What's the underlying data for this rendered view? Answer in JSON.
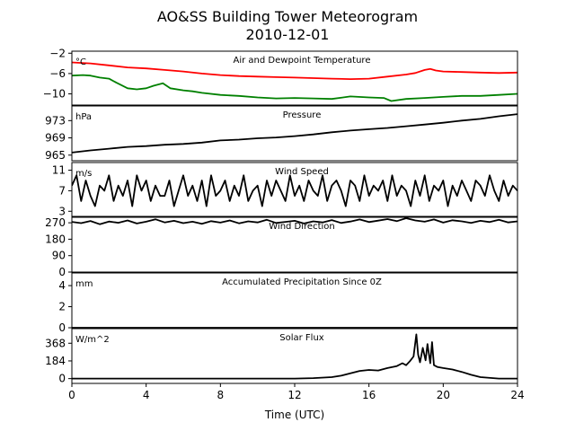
{
  "chart_data": {
    "type": "line",
    "title": "AO&SS Building Tower Meteorogram",
    "subtitle": "2010-12-01",
    "xlabel": "Time (UTC)",
    "xlim": [
      0,
      24
    ],
    "xticks": [
      "0",
      "4",
      "8",
      "12",
      "16",
      "20",
      "24"
    ],
    "panels": [
      {
        "title": "Air and Dewpoint Temperature",
        "unit": "°C",
        "ylim": [
          -12.2,
          -1.6
        ],
        "yticks": [
          {
            "v": -2,
            "t": "−2"
          },
          {
            "v": -6,
            "t": "−6"
          },
          {
            "v": -10,
            "t": "−10"
          }
        ],
        "series": [
          {
            "color": "#ff0000",
            "x": [
              0,
              1,
              2,
              3,
              4,
              5,
              6,
              7,
              8,
              9,
              10,
              11,
              12,
              13,
              14,
              15,
              16,
              17,
              18,
              18.5,
              19,
              19.3,
              19.6,
              20,
              21,
              22,
              23,
              24
            ],
            "y": [
              -3.8,
              -4.0,
              -4.4,
              -4.8,
              -5.0,
              -5.3,
              -5.6,
              -6.0,
              -6.3,
              -6.5,
              -6.6,
              -6.7,
              -6.8,
              -6.9,
              -7.0,
              -7.1,
              -7.0,
              -6.6,
              -6.2,
              -5.9,
              -5.3,
              -5.1,
              -5.4,
              -5.6,
              -5.7,
              -5.8,
              -5.9,
              -5.8
            ]
          },
          {
            "color": "#008000",
            "x": [
              0,
              0.6,
              1,
              1.5,
              2,
              2.4,
              3,
              3.5,
              4,
              4.4,
              4.9,
              5.3,
              6,
              6.5,
              7,
              8,
              9,
              10,
              11,
              12,
              13,
              14,
              15,
              16,
              16.8,
              17.2,
              18,
              19,
              20,
              21,
              22,
              23,
              24
            ],
            "y": [
              -6.4,
              -6.3,
              -6.4,
              -6.8,
              -7.0,
              -7.8,
              -8.9,
              -9.1,
              -8.9,
              -8.4,
              -7.9,
              -8.9,
              -9.3,
              -9.5,
              -9.8,
              -10.2,
              -10.4,
              -10.7,
              -10.9,
              -10.8,
              -10.9,
              -11.0,
              -10.5,
              -10.7,
              -10.8,
              -11.4,
              -11.0,
              -10.8,
              -10.6,
              -10.4,
              -10.4,
              -10.2,
              -10.0
            ]
          }
        ]
      },
      {
        "title": "Pressure",
        "unit": "hPa",
        "ylim": [
          963.7,
          976.4
        ],
        "yticks": [
          {
            "v": 973,
            "t": "973"
          },
          {
            "v": 969,
            "t": "969"
          },
          {
            "v": 965,
            "t": "965"
          }
        ],
        "series": [
          {
            "color": "#000000",
            "x": [
              0,
              1,
              2,
              3,
              4,
              5,
              6,
              7,
              8,
              9,
              10,
              11,
              12,
              13,
              14,
              15,
              16,
              17,
              18,
              19,
              20,
              21,
              22,
              23,
              24
            ],
            "y": [
              965.6,
              966.1,
              966.5,
              966.9,
              967.1,
              967.4,
              967.6,
              967.9,
              968.4,
              968.6,
              968.9,
              969.1,
              969.4,
              969.8,
              970.3,
              970.7,
              971.0,
              971.3,
              971.7,
              972.1,
              972.5,
              973.0,
              973.4,
              974.0,
              974.5
            ]
          }
        ]
      },
      {
        "title": "Wind Speed",
        "unit": "m/s",
        "ylim": [
          2.0,
          12.5
        ],
        "yticks": [
          {
            "v": 11,
            "t": "11"
          },
          {
            "v": 7,
            "t": "7"
          },
          {
            "v": 3,
            "t": "3"
          }
        ],
        "series": [
          {
            "color": "#000000",
            "x": [
              0,
              0.25,
              0.5,
              0.75,
              1,
              1.25,
              1.5,
              1.75,
              2,
              2.25,
              2.5,
              2.75,
              3,
              3.25,
              3.5,
              3.75,
              4,
              4.25,
              4.5,
              4.75,
              5,
              5.25,
              5.5,
              5.75,
              6,
              6.25,
              6.5,
              6.75,
              7,
              7.25,
              7.5,
              7.75,
              8,
              8.25,
              8.5,
              8.75,
              9,
              9.25,
              9.5,
              9.75,
              10,
              10.25,
              10.5,
              10.75,
              11,
              11.25,
              11.5,
              11.75,
              12,
              12.25,
              12.5,
              12.75,
              13,
              13.25,
              13.5,
              13.75,
              14,
              14.25,
              14.5,
              14.75,
              15,
              15.25,
              15.5,
              15.75,
              16,
              16.25,
              16.5,
              16.75,
              17,
              17.25,
              17.5,
              17.75,
              18,
              18.25,
              18.5,
              18.75,
              19,
              19.25,
              19.5,
              19.75,
              20,
              20.25,
              20.5,
              20.75,
              21,
              21.25,
              21.5,
              21.75,
              22,
              22.25,
              22.5,
              22.75,
              23,
              23.25,
              23.5,
              23.75,
              24
            ],
            "y": [
              8,
              10,
              5,
              9,
              6,
              4,
              8,
              7,
              10,
              5,
              8,
              6,
              9,
              4,
              10,
              7,
              9,
              5,
              8,
              6,
              6,
              9,
              4,
              7,
              10,
              6,
              8,
              5,
              9,
              4,
              10,
              6,
              7,
              9,
              5,
              8,
              6,
              10,
              5,
              7,
              8,
              4,
              9,
              6,
              9,
              7,
              5,
              10,
              6,
              8,
              5,
              9,
              7,
              6,
              10,
              5,
              8,
              9,
              7,
              4,
              9,
              8,
              5,
              10,
              6,
              8,
              7,
              9,
              5,
              10,
              6,
              8,
              7,
              4,
              9,
              6,
              10,
              5,
              8,
              7,
              9,
              4,
              8,
              6,
              9,
              7,
              5,
              9,
              8,
              6,
              10,
              7,
              5,
              9,
              6,
              8,
              7
            ]
          }
        ]
      },
      {
        "title": "Wind Direction",
        "unit": "",
        "ylim": [
          0,
          300
        ],
        "yticks": [
          {
            "v": 270,
            "t": "270"
          },
          {
            "v": 180,
            "t": "180"
          },
          {
            "v": 90,
            "t": "90"
          },
          {
            "v": 0,
            "t": "0"
          }
        ],
        "series": [
          {
            "color": "#000000",
            "x": [
              0,
              0.5,
              1,
              1.5,
              2,
              2.5,
              3,
              3.5,
              4,
              4.5,
              5,
              5.5,
              6,
              6.5,
              7,
              7.5,
              8,
              8.5,
              9,
              9.5,
              10,
              10.5,
              11,
              11.5,
              12,
              12.5,
              13,
              13.5,
              14,
              14.5,
              15,
              15.5,
              16,
              16.5,
              17,
              17.5,
              18,
              18.5,
              19,
              19.5,
              20,
              20.5,
              21,
              21.5,
              22,
              22.5,
              23,
              23.5,
              24
            ],
            "y": [
              275,
              268,
              280,
              262,
              277,
              270,
              283,
              266,
              276,
              289,
              272,
              281,
              268,
              276,
              264,
              279,
              271,
              283,
              267,
              278,
              272,
              286,
              269,
              275,
              281,
              266,
              278,
              272,
              285,
              269,
              277,
              288,
              274,
              282,
              290,
              279,
              295,
              283,
              276,
              288,
              271,
              284,
              278,
              269,
              281,
              274,
              286,
              272,
              278
            ]
          }
        ]
      },
      {
        "title": "Accumulated Precipitation Since 0Z",
        "unit": "mm",
        "ylim": [
          0,
          5.2
        ],
        "yticks": [
          {
            "v": 4,
            "t": "4"
          },
          {
            "v": 2,
            "t": "2"
          },
          {
            "v": 0,
            "t": "0"
          }
        ],
        "series": [
          {
            "color": "#000000",
            "x": [
              0,
              24
            ],
            "y": [
              0,
              0
            ]
          }
        ]
      },
      {
        "title": "Solar Flux",
        "unit": "W/m^2",
        "ylim": [
          -50,
          520
        ],
        "yticks": [
          {
            "v": 368,
            "t": "368"
          },
          {
            "v": 184,
            "t": "184"
          },
          {
            "v": 0,
            "t": "0"
          }
        ],
        "series": [
          {
            "color": "#000000",
            "x": [
              0,
              6,
              12,
              13,
              14,
              14.5,
              15,
              15.5,
              16,
              16.5,
              17,
              17.5,
              17.8,
              18,
              18.2,
              18.4,
              18.55,
              18.65,
              18.75,
              18.9,
              19.05,
              19.15,
              19.3,
              19.4,
              19.5,
              19.7,
              20,
              20.5,
              21,
              21.5,
              22,
              23,
              24
            ],
            "y": [
              0,
              0,
              0,
              5,
              15,
              30,
              55,
              80,
              90,
              85,
              110,
              130,
              160,
              140,
              180,
              230,
              460,
              250,
              170,
              320,
              190,
              360,
              160,
              380,
              140,
              120,
              110,
              95,
              70,
              40,
              15,
              0,
              0
            ]
          }
        ]
      }
    ]
  }
}
